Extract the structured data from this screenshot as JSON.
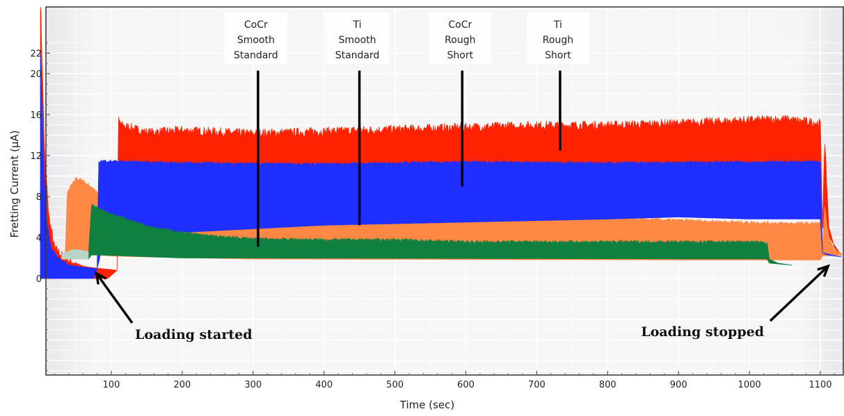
{
  "chart_data": {
    "type": "area",
    "title": "",
    "xlabel": "Time (sec)",
    "ylabel": "Fretting Current (μA)",
    "xlim": [
      0,
      1130
    ],
    "ylim": [
      -9.5,
      23.8
    ],
    "grid": true,
    "x_ticks": [
      100,
      200,
      300,
      400,
      500,
      600,
      700,
      800,
      900,
      1000,
      1100
    ],
    "y_ticks": [
      0,
      4,
      8,
      12,
      16,
      20,
      22
    ],
    "series": [
      {
        "color": "#ff2200",
        "upper": {
          "x": [
            0,
            2,
            6,
            12,
            20,
            35,
            60,
            80,
            95,
            108,
            110,
            115,
            150,
            200,
            300,
            400,
            500,
            600,
            700,
            800,
            900,
            1000,
            1050,
            1100,
            1103,
            1106,
            1112,
            1120,
            1130
          ],
          "y": [
            28,
            22,
            12,
            6,
            3,
            2,
            1.2,
            1.0,
            0.9,
            0.8,
            15.5,
            15.0,
            14.3,
            14.5,
            14.2,
            14.4,
            14.6,
            14.8,
            15.0,
            15.0,
            15.2,
            15.5,
            15.6,
            15.2,
            5,
            13.5,
            5,
            3,
            2.2
          ]
        },
        "lower": {
          "x": [
            0,
            35,
            60,
            80,
            95,
            108,
            110,
            1100,
            1103,
            1130
          ],
          "y": [
            0,
            0,
            0,
            0,
            0,
            0.8,
            11.0,
            11.0,
            5,
            2.2
          ]
        }
      },
      {
        "color": "#ff8844",
        "upper": {
          "x": [
            35,
            38,
            50,
            60,
            80,
            100,
            150,
            200,
            300,
            400,
            500,
            600,
            700,
            800,
            900,
            1000,
            1050,
            1100,
            1103,
            1106,
            1112,
            1120,
            1130
          ],
          "y": [
            2.5,
            8.5,
            9.8,
            9.6,
            8.4,
            8.0,
            7.5,
            7.1,
            6.9,
            6.6,
            6.5,
            6.2,
            6.0,
            5.9,
            5.7,
            5.5,
            5.4,
            5.4,
            3.0,
            7.0,
            4.0,
            2.8,
            2.4
          ]
        },
        "lower": {
          "x": [
            35,
            50,
            80,
            100,
            150,
            300,
            1000,
            1100,
            1103,
            1130
          ],
          "y": [
            2.0,
            2.2,
            2.3,
            2.2,
            2.1,
            1.9,
            1.8,
            1.8,
            2.2,
            2.3
          ]
        }
      },
      {
        "color": "#1f2fff",
        "upper": {
          "x": [
            0,
            4,
            8,
            15,
            25,
            40,
            60,
            75,
            80,
            82,
            85,
            200,
            400,
            600,
            800,
            1000,
            1100,
            1103,
            1110,
            1120,
            1130
          ],
          "y": [
            22,
            12,
            6,
            3,
            2,
            1.3,
            1.1,
            1.0,
            1.0,
            11.3,
            11.5,
            11.3,
            11.2,
            11.4,
            11.3,
            11.4,
            11.4,
            2.5,
            2.3,
            2.2,
            2.1
          ]
        },
        "lower": {
          "x": [
            0,
            40,
            75,
            80,
            82,
            85,
            200,
            400,
            600,
            800,
            900,
            1000,
            1100,
            1103,
            1130
          ],
          "y": [
            0,
            0,
            0,
            1.0,
            1.5,
            2.5,
            4.5,
            5.2,
            5.5,
            5.8,
            6.0,
            5.8,
            5.8,
            2.5,
            2.1
          ]
        }
      },
      {
        "color": "#108040",
        "upper": {
          "x": [
            55,
            68,
            72,
            80,
            100,
            130,
            160,
            200,
            250,
            300,
            400,
            500,
            600,
            700,
            800,
            900,
            1000,
            1025,
            1028,
            1040,
            1060
          ],
          "y": [
            2.4,
            2.5,
            7.2,
            6.9,
            6.3,
            5.6,
            5.0,
            4.5,
            4.1,
            3.9,
            3.8,
            3.8,
            3.6,
            3.6,
            3.6,
            3.6,
            3.6,
            3.5,
            1.9,
            1.5,
            1.3
          ]
        },
        "lower": {
          "x": [
            55,
            68,
            72,
            80,
            200,
            1025,
            1028,
            1060
          ],
          "y": [
            2.0,
            1.9,
            2.3,
            2.3,
            2.0,
            1.9,
            1.5,
            1.3
          ]
        }
      },
      {
        "color": "#b8d4c4",
        "upper": {
          "x": [
            30,
            45,
            55,
            68
          ],
          "y": [
            2.4,
            2.8,
            2.8,
            2.6
          ]
        },
        "lower": {
          "x": [
            30,
            45,
            55,
            68
          ],
          "y": [
            1.9,
            1.9,
            1.9,
            1.9
          ]
        }
      }
    ],
    "annotations": [
      {
        "text": [
          "CoCr",
          "Smooth",
          "Standard"
        ],
        "x": 302,
        "line_y": [
          20.3,
          3.1
        ]
      },
      {
        "text": [
          "Ti",
          "Smooth",
          "Standard"
        ],
        "x": 445,
        "line_y": [
          20.3,
          5.2
        ]
      },
      {
        "text": [
          "CoCr",
          "Rough",
          "Short"
        ],
        "x": 590,
        "line_y": [
          20.3,
          9.0
        ]
      },
      {
        "text": [
          "Ti",
          "Rough",
          "Short"
        ],
        "x": 728,
        "line_y": [
          20.3,
          12.5
        ]
      }
    ],
    "events": [
      {
        "text": "Loading started",
        "x": 75
      },
      {
        "text": "Loading stopped",
        "x": 1103
      }
    ]
  }
}
